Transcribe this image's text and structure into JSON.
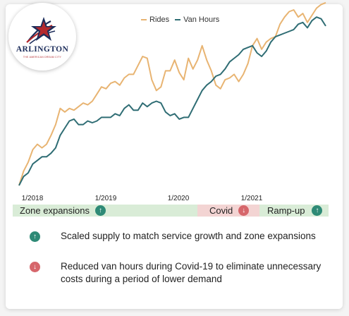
{
  "logo": {
    "wordmark": "ARLINGTON",
    "tagline": "THE AMERICAN DREAM CITY",
    "colors": {
      "navy": "#1b2c5a",
      "red": "#b3282d",
      "white": "#ffffff"
    }
  },
  "chart_data": {
    "type": "line",
    "x_tick_labels": [
      "1/2018",
      "1/2019",
      "1/2020",
      "1/2021"
    ],
    "legend": [
      "Rides",
      "Van Hours"
    ],
    "legend_placement": "top-center",
    "grid": false,
    "y_axis_shown": false,
    "ylim": [
      0,
      100
    ],
    "x_start": "2017-11",
    "series": [
      {
        "name": "Rides",
        "color": "#e8b472",
        "values": [
          2,
          10,
          15,
          22,
          25,
          23,
          25,
          30,
          36,
          45,
          43,
          45,
          44,
          46,
          48,
          47,
          49,
          53,
          57,
          56,
          59,
          60,
          58,
          62,
          64,
          64,
          69,
          74,
          73,
          61,
          55,
          57,
          66,
          66,
          72,
          65,
          61,
          73,
          67,
          72,
          80,
          72,
          66,
          58,
          56,
          61,
          62,
          64,
          60,
          64,
          70,
          80,
          84,
          78,
          82,
          84,
          85,
          92,
          96,
          99,
          100,
          96,
          98,
          93,
          97,
          101,
          103,
          104
        ]
      },
      {
        "name": "Van Hours",
        "color": "#2f6d74",
        "values": [
          2,
          7,
          9,
          14,
          16,
          18,
          18,
          20,
          23,
          30,
          34,
          38,
          39,
          36,
          36,
          38,
          37,
          38,
          40,
          40,
          40,
          42,
          41,
          45,
          47,
          44,
          44,
          48,
          46,
          48,
          49,
          48,
          43,
          41,
          42,
          39,
          40,
          40,
          45,
          50,
          55,
          58,
          60,
          63,
          64,
          67,
          71,
          73,
          75,
          78,
          79,
          80,
          76,
          74,
          77,
          82,
          85,
          86,
          87,
          88,
          89,
          92,
          93,
          90,
          94,
          96,
          95,
          91
        ]
      }
    ]
  },
  "bands": [
    {
      "label": "Zone expansions",
      "icon": "up-arrow-icon",
      "color": "green"
    },
    {
      "label": "Covid",
      "icon": "down-arrow-icon",
      "color": "red"
    },
    {
      "label": "Ramp-up",
      "icon": "up-arrow-icon",
      "color": "green"
    }
  ],
  "notes": [
    {
      "icon": "up-arrow-icon",
      "text": "Scaled supply to match service growth and zone expansions"
    },
    {
      "icon": "down-arrow-icon",
      "text": "Reduced van hours during Covid-19 to eliminate unnecessary costs during a period of lower demand"
    }
  ],
  "colors": {
    "rides": "#e8b472",
    "van_hours": "#2f6d74",
    "band_green": "#d9ecd7",
    "band_red": "#f3d4d3",
    "icon_teal": "#2e8a76",
    "icon_red": "#d6666b"
  }
}
